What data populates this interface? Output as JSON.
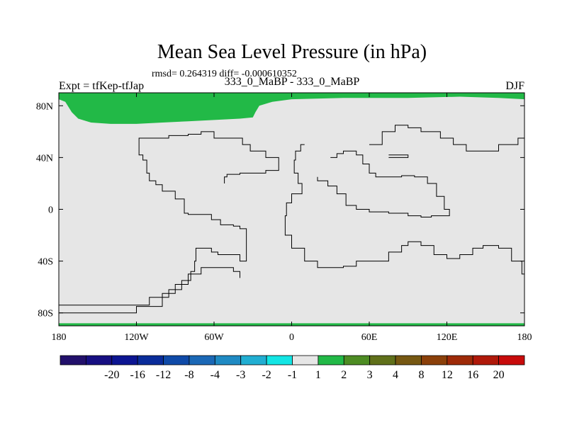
{
  "chart_data": {
    "type": "heatmap",
    "title": "Mean Sea Level Pressure (in hPa)",
    "stats_line": "rmsd= 0.264319 diff= -0.000610352",
    "subtitle_left": "Expt = tfKep-tfJap",
    "subtitle_center": "333_0_MaBP - 333_0_MaBP",
    "subtitle_right": "DJF",
    "x_ticks": [
      {
        "value": -180,
        "label": "180"
      },
      {
        "value": -120,
        "label": "120W"
      },
      {
        "value": -60,
        "label": "60W"
      },
      {
        "value": 0,
        "label": "0"
      },
      {
        "value": 60,
        "label": "60E"
      },
      {
        "value": 120,
        "label": "120E"
      },
      {
        "value": 180,
        "label": "180"
      }
    ],
    "y_ticks": [
      {
        "value": 80,
        "label": "80N"
      },
      {
        "value": 40,
        "label": "40N"
      },
      {
        "value": 0,
        "label": "0"
      },
      {
        "value": -40,
        "label": "40S"
      },
      {
        "value": -80,
        "label": "80S"
      }
    ],
    "xlim": [
      -180,
      180
    ],
    "ylim": [
      -90,
      90
    ],
    "background_fill": "#e6e6e6",
    "colorbar": {
      "labels": [
        "-20",
        "-16",
        "-12",
        "-8",
        "-4",
        "-3",
        "-2",
        "-1",
        "1",
        "2",
        "3",
        "4",
        "8",
        "12",
        "16",
        "20"
      ],
      "colors": [
        "#22106b",
        "#170f82",
        "#0c1592",
        "#0a2c9a",
        "#0f4aa8",
        "#1b68b6",
        "#1f8ac3",
        "#21aed2",
        "#13e5e4",
        "#e6e6e6",
        "#22b947",
        "#4d8c23",
        "#60701a",
        "#765812",
        "#8b400a",
        "#9e2a08",
        "#b0190a",
        "#c80b0b"
      ]
    },
    "filled_regions": [
      {
        "name": "arctic-positive-anomaly",
        "value_range": "1 to 2",
        "color": "#22b947",
        "points": [
          [
            -180,
            90
          ],
          [
            -180,
            85
          ],
          [
            -175,
            83
          ],
          [
            -170,
            75
          ],
          [
            -165,
            70
          ],
          [
            -155,
            67
          ],
          [
            -140,
            66
          ],
          [
            -120,
            66
          ],
          [
            -100,
            67
          ],
          [
            -80,
            68
          ],
          [
            -60,
            69
          ],
          [
            -40,
            70
          ],
          [
            -30,
            71
          ],
          [
            -28,
            75
          ],
          [
            -25,
            80
          ],
          [
            -15,
            83
          ],
          [
            0,
            85
          ],
          [
            40,
            86
          ],
          [
            90,
            86
          ],
          [
            130,
            87
          ],
          [
            160,
            86
          ],
          [
            180,
            85
          ],
          [
            180,
            90
          ]
        ]
      },
      {
        "name": "antarctic-positive-anomaly",
        "value_range": "1 to 2",
        "color": "#22b947",
        "points": [
          [
            -180,
            -90
          ],
          [
            -180,
            -88
          ],
          [
            180,
            -88
          ],
          [
            180,
            -90
          ]
        ]
      }
    ],
    "coastlines": [
      {
        "name": "americas",
        "points": [
          [
            -180,
            -74
          ],
          [
            -130,
            -74
          ],
          [
            -110,
            -68
          ],
          [
            -95,
            -62
          ],
          [
            -85,
            -55
          ],
          [
            -78,
            -48
          ],
          [
            -75,
            -40
          ],
          [
            -74,
            -30
          ],
          [
            -62,
            -33
          ],
          [
            -57,
            -35
          ],
          [
            -40,
            -40
          ],
          [
            -35,
            -15
          ],
          [
            -40,
            -13
          ],
          [
            -45,
            -12
          ],
          [
            -55,
            -8
          ],
          [
            -60,
            -8
          ],
          [
            -62,
            -4
          ],
          [
            -70,
            -4
          ],
          [
            -80,
            -3
          ],
          [
            -83,
            8
          ],
          [
            -90,
            14
          ],
          [
            -100,
            19
          ],
          [
            -105,
            22
          ],
          [
            -110,
            28
          ],
          [
            -112,
            38
          ],
          [
            -115,
            42
          ],
          [
            -118,
            55
          ],
          [
            -110,
            55
          ],
          [
            -95,
            57
          ],
          [
            -80,
            58
          ],
          [
            -70,
            60
          ],
          [
            -60,
            55
          ],
          [
            -45,
            55
          ],
          [
            -38,
            50
          ],
          [
            -32,
            45
          ],
          [
            -20,
            40
          ],
          [
            -10,
            30
          ],
          [
            -20,
            28
          ],
          [
            -40,
            27
          ],
          [
            -50,
            25
          ],
          [
            -52,
            20
          ]
        ]
      },
      {
        "name": "africa-eurasia",
        "points": [
          [
            10,
            50
          ],
          [
            7,
            45
          ],
          [
            3,
            38
          ],
          [
            2,
            28
          ],
          [
            5,
            20
          ],
          [
            8,
            12
          ],
          [
            0,
            5
          ],
          [
            -4,
            -5
          ],
          [
            -5,
            -20
          ],
          [
            0,
            -30
          ],
          [
            10,
            -40
          ],
          [
            20,
            -45
          ],
          [
            40,
            -44
          ],
          [
            50,
            -40
          ],
          [
            65,
            -40
          ],
          [
            75,
            -33
          ],
          [
            85,
            -28
          ],
          [
            90,
            -25
          ],
          [
            100,
            -28
          ],
          [
            110,
            -35
          ],
          [
            120,
            -38
          ],
          [
            130,
            -35
          ],
          [
            140,
            -30
          ],
          [
            148,
            -28
          ],
          [
            160,
            -30
          ],
          [
            170,
            -40
          ],
          [
            178,
            -50
          ],
          [
            180,
            -70
          ]
        ]
      },
      {
        "name": "arabia-india",
        "points": [
          [
            30,
            40
          ],
          [
            35,
            43
          ],
          [
            40,
            45
          ],
          [
            50,
            42
          ],
          [
            55,
            35
          ],
          [
            60,
            28
          ],
          [
            65,
            25
          ],
          [
            75,
            25
          ],
          [
            85,
            26
          ],
          [
            95,
            25
          ],
          [
            105,
            20
          ],
          [
            112,
            10
          ],
          [
            118,
            0
          ],
          [
            122,
            -5
          ],
          [
            108,
            -6
          ],
          [
            100,
            -5
          ],
          [
            90,
            -3
          ],
          [
            75,
            -2
          ],
          [
            60,
            0
          ],
          [
            50,
            3
          ],
          [
            42,
            12
          ],
          [
            35,
            18
          ],
          [
            28,
            22
          ],
          [
            20,
            25
          ]
        ]
      },
      {
        "name": "east-asia",
        "points": [
          [
            60,
            50
          ],
          [
            70,
            60
          ],
          [
            80,
            65
          ],
          [
            90,
            63
          ],
          [
            100,
            60
          ],
          [
            115,
            55
          ],
          [
            125,
            50
          ],
          [
            135,
            45
          ],
          [
            145,
            45
          ],
          [
            160,
            50
          ],
          [
            175,
            55
          ],
          [
            180,
            58
          ]
        ]
      },
      {
        "name": "south-america-tip",
        "points": [
          [
            -180,
            -80
          ],
          [
            -140,
            -80
          ],
          [
            -120,
            -75
          ],
          [
            -100,
            -65
          ],
          [
            -90,
            -58
          ],
          [
            -80,
            -50
          ],
          [
            -70,
            -45
          ],
          [
            -55,
            -45
          ],
          [
            -45,
            -48
          ],
          [
            -40,
            -53
          ]
        ]
      },
      {
        "name": "small-island",
        "points": [
          [
            75,
            42
          ],
          [
            90,
            42
          ],
          [
            90,
            40
          ],
          [
            75,
            40
          ]
        ]
      }
    ]
  }
}
